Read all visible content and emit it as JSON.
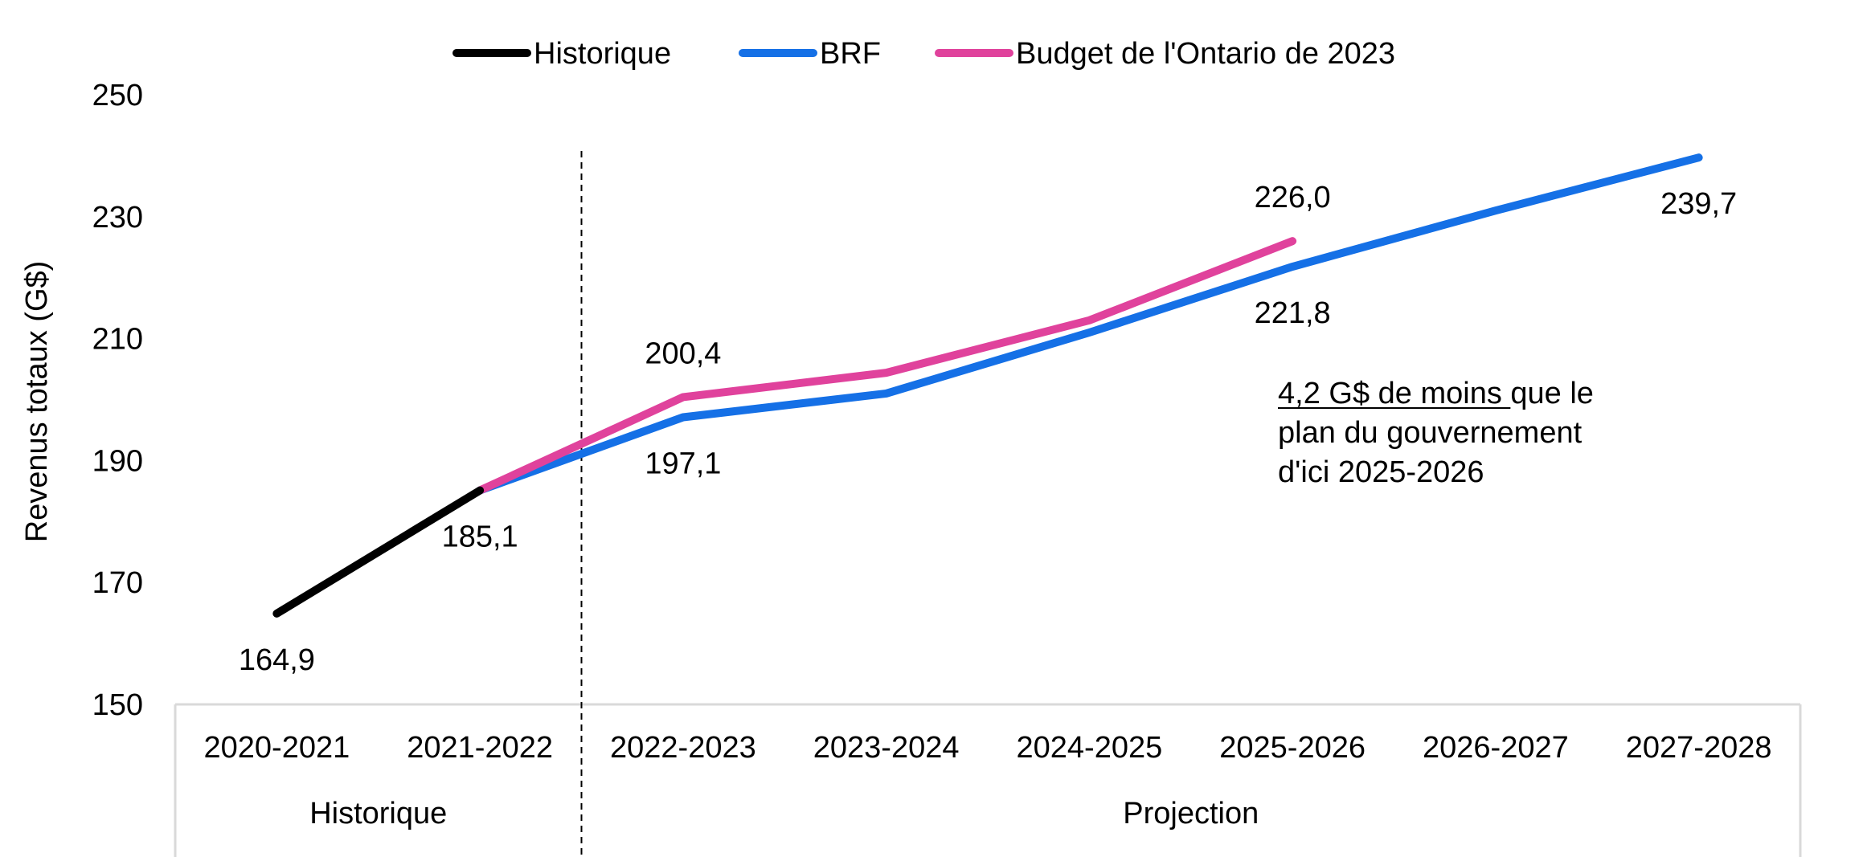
{
  "chart_data": {
    "type": "line",
    "ylabel": "Revenus totaux (G$)",
    "xlabel": "",
    "ylim": [
      150,
      250
    ],
    "yticks": [
      150,
      170,
      190,
      210,
      230,
      250
    ],
    "grid": false,
    "legend_position": "top-center",
    "categories": [
      "2020-2021",
      "2021-2022",
      "2022-2023",
      "2023-2024",
      "2024-2025",
      "2025-2026",
      "2026-2027",
      "2027-2028"
    ],
    "groups": [
      {
        "label": "Historique",
        "from": 0,
        "to": 1
      },
      {
        "label": "Projection",
        "from": 2,
        "to": 7
      }
    ],
    "series": [
      {
        "name": "Historique",
        "color": "#000000",
        "values": [
          164.9,
          185.1,
          null,
          null,
          null,
          null,
          null,
          null
        ]
      },
      {
        "name": "BRF",
        "color": "#1570E6",
        "values": [
          null,
          185.1,
          197.1,
          201.0,
          211.0,
          221.8,
          231.0,
          239.7
        ]
      },
      {
        "name": "Budget de l'Ontario de 2023",
        "color": "#E0429C",
        "values": [
          null,
          185.1,
          200.4,
          204.4,
          213.0,
          226.0,
          null,
          null
        ]
      }
    ],
    "data_labels": [
      {
        "category_index": 0,
        "value": 164.9,
        "text": "164,9",
        "position": "below"
      },
      {
        "category_index": 1,
        "value": 185.1,
        "text": "185,1",
        "position": "below"
      },
      {
        "category_index": 2,
        "value": 200.4,
        "text": "200,4",
        "position": "above"
      },
      {
        "category_index": 2,
        "value": 197.1,
        "text": "197,1",
        "position": "below"
      },
      {
        "category_index": 5,
        "value": 226.0,
        "text": "226,0",
        "position": "above"
      },
      {
        "category_index": 5,
        "value": 221.8,
        "text": "221,8",
        "position": "below"
      },
      {
        "category_index": 7,
        "value": 239.7,
        "text": "239,7",
        "position": "below"
      }
    ],
    "annotation": {
      "underlined": "4,2 G$ de moins ",
      "rest_line1": "que le",
      "line2": "plan du gouvernement",
      "line3": "d'ici 2025-2026"
    }
  }
}
